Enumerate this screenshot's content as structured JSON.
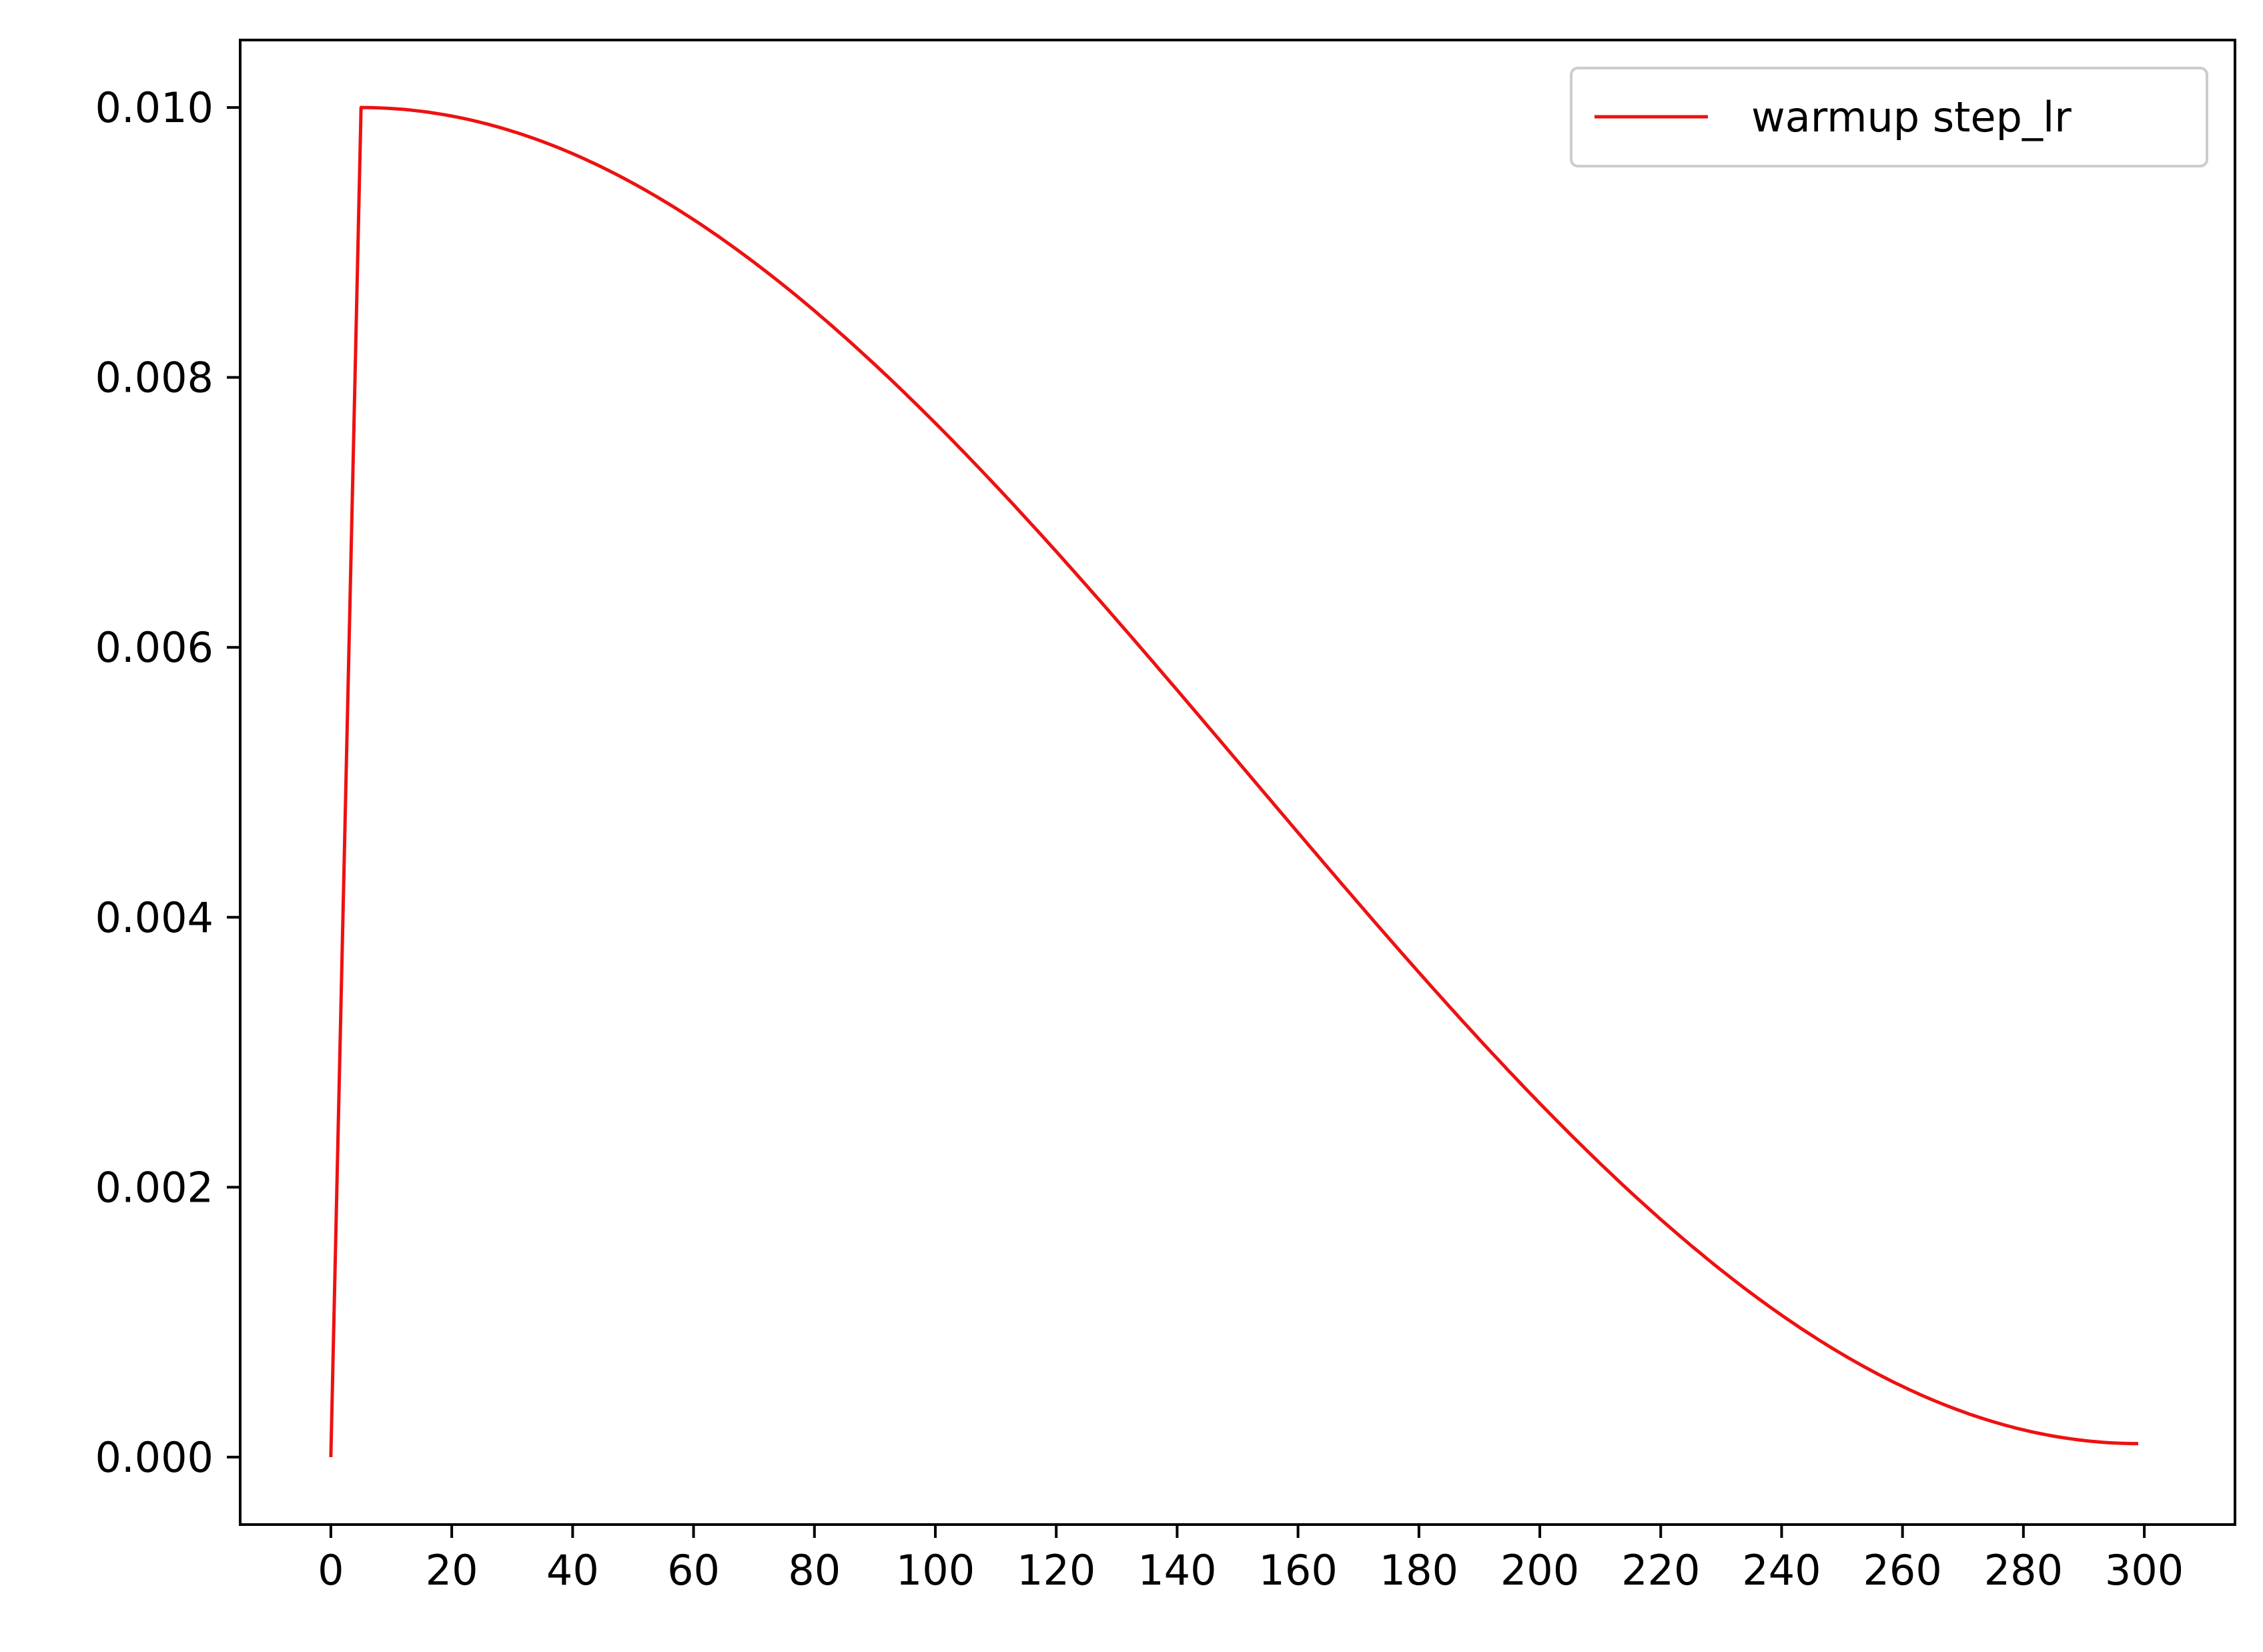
{
  "chart_data": {
    "type": "line",
    "title": "",
    "xlabel": "",
    "ylabel": "",
    "xlim": [
      -15,
      315
    ],
    "ylim": [
      -0.0005,
      0.0105
    ],
    "xticks": [
      0,
      20,
      40,
      60,
      80,
      100,
      120,
      140,
      160,
      180,
      200,
      220,
      240,
      260,
      280,
      300
    ],
    "xtick_labels": [
      "0",
      "20",
      "40",
      "60",
      "80",
      "100",
      "120",
      "140",
      "160",
      "180",
      "200",
      "220",
      "240",
      "260",
      "280",
      "300"
    ],
    "yticks": [
      0.0,
      0.002,
      0.004,
      0.006,
      0.008,
      0.01
    ],
    "ytick_labels": [
      "0.000",
      "0.002",
      "0.004",
      "0.006",
      "0.008",
      "0.010"
    ],
    "grid": false,
    "legend_position": "top-right",
    "series": [
      {
        "name": "warmup step_lr",
        "color": "#ee1111",
        "x": [
          0,
          5,
          20,
          40,
          60,
          80,
          100,
          120,
          140,
          160,
          180,
          200,
          220,
          240,
          260,
          280,
          299
        ],
        "y": [
          0.0,
          0.01,
          0.00995,
          0.00966,
          0.00915,
          0.00845,
          0.00762,
          0.00668,
          0.00568,
          0.00465,
          0.00364,
          0.00268,
          0.00183,
          0.00111,
          0.00056,
          0.0002,
          0.0001
        ]
      }
    ]
  }
}
